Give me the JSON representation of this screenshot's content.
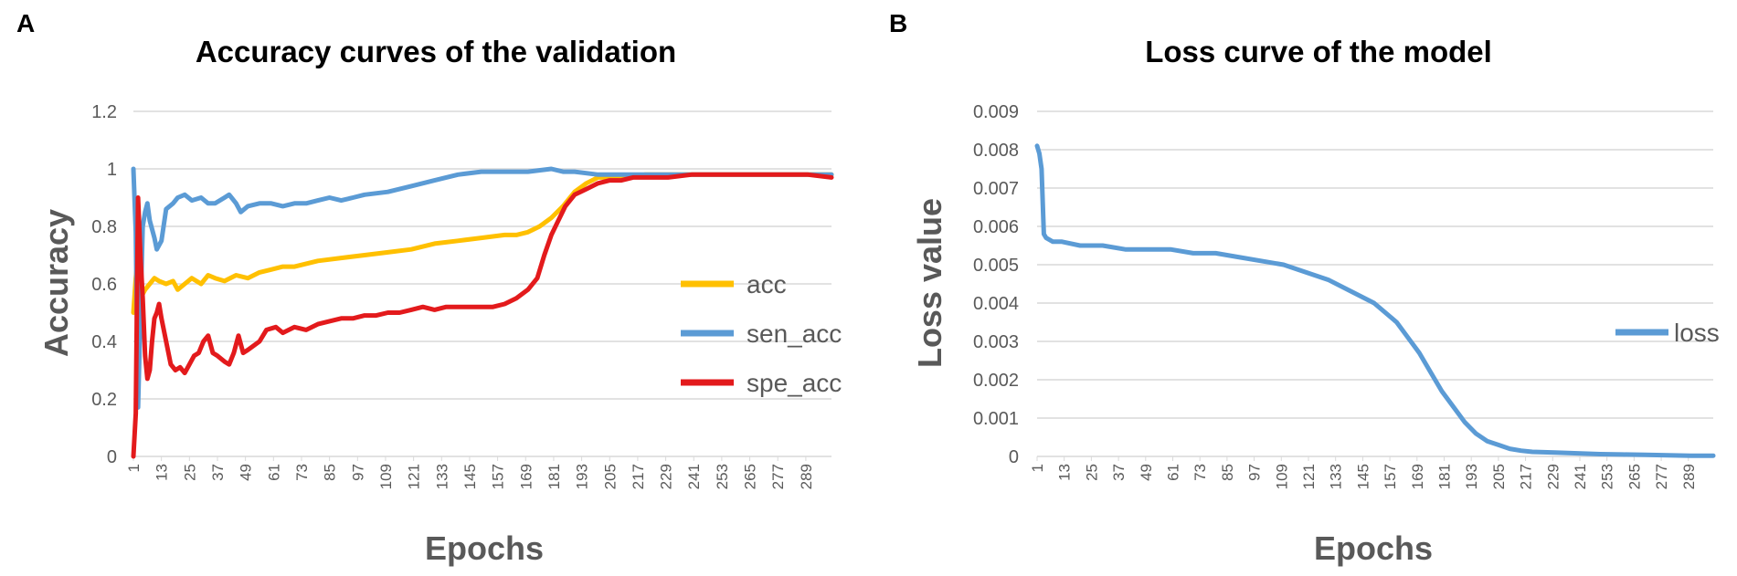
{
  "chart_data": [
    {
      "panel": "A",
      "type": "line",
      "title": "Accuracy curves of the validation",
      "xlabel": "Epochs",
      "ylabel": "Accuracy",
      "ylim": [
        0,
        1.2
      ],
      "yticks": [
        "0",
        "0.2",
        "0.4",
        "0.6",
        "0.8",
        "1",
        "1.2"
      ],
      "xlim": [
        1,
        300
      ],
      "xticks": [
        "1",
        "13",
        "25",
        "37",
        "49",
        "61",
        "73",
        "85",
        "97",
        "109",
        "121",
        "133",
        "145",
        "157",
        "169",
        "181",
        "193",
        "205",
        "217",
        "229",
        "241",
        "253",
        "265",
        "277",
        "289"
      ],
      "grid": true,
      "legend_position": "right",
      "series": [
        {
          "name": "acc",
          "color": "#FFC000",
          "points": [
            [
              1,
              0.5
            ],
            [
              2,
              0.62
            ],
            [
              3,
              0.7
            ],
            [
              4,
              0.55
            ],
            [
              6,
              0.58
            ],
            [
              8,
              0.6
            ],
            [
              10,
              0.62
            ],
            [
              12,
              0.61
            ],
            [
              15,
              0.6
            ],
            [
              18,
              0.61
            ],
            [
              20,
              0.58
            ],
            [
              23,
              0.6
            ],
            [
              26,
              0.62
            ],
            [
              30,
              0.6
            ],
            [
              33,
              0.63
            ],
            [
              36,
              0.62
            ],
            [
              40,
              0.61
            ],
            [
              45,
              0.63
            ],
            [
              50,
              0.62
            ],
            [
              55,
              0.64
            ],
            [
              60,
              0.65
            ],
            [
              65,
              0.66
            ],
            [
              70,
              0.66
            ],
            [
              80,
              0.68
            ],
            [
              90,
              0.69
            ],
            [
              100,
              0.7
            ],
            [
              110,
              0.71
            ],
            [
              120,
              0.72
            ],
            [
              130,
              0.74
            ],
            [
              140,
              0.75
            ],
            [
              150,
              0.76
            ],
            [
              160,
              0.77
            ],
            [
              165,
              0.77
            ],
            [
              170,
              0.78
            ],
            [
              175,
              0.8
            ],
            [
              180,
              0.83
            ],
            [
              185,
              0.87
            ],
            [
              190,
              0.92
            ],
            [
              195,
              0.95
            ],
            [
              200,
              0.97
            ],
            [
              205,
              0.97
            ],
            [
              210,
              0.97
            ],
            [
              220,
              0.98
            ],
            [
              230,
              0.98
            ],
            [
              240,
              0.98
            ],
            [
              250,
              0.98
            ],
            [
              260,
              0.98
            ],
            [
              270,
              0.98
            ],
            [
              280,
              0.98
            ],
            [
              290,
              0.98
            ],
            [
              300,
              0.98
            ]
          ]
        },
        {
          "name": "sen_acc",
          "color": "#5B9BD5",
          "points": [
            [
              1,
              1.0
            ],
            [
              2,
              0.78
            ],
            [
              3,
              0.17
            ],
            [
              4,
              0.5
            ],
            [
              5,
              0.8
            ],
            [
              6,
              0.85
            ],
            [
              7,
              0.88
            ],
            [
              8,
              0.82
            ],
            [
              10,
              0.76
            ],
            [
              11,
              0.72
            ],
            [
              13,
              0.75
            ],
            [
              15,
              0.86
            ],
            [
              18,
              0.88
            ],
            [
              20,
              0.9
            ],
            [
              23,
              0.91
            ],
            [
              26,
              0.89
            ],
            [
              30,
              0.9
            ],
            [
              33,
              0.88
            ],
            [
              36,
              0.88
            ],
            [
              40,
              0.9
            ],
            [
              42,
              0.91
            ],
            [
              45,
              0.88
            ],
            [
              47,
              0.85
            ],
            [
              50,
              0.87
            ],
            [
              55,
              0.88
            ],
            [
              60,
              0.88
            ],
            [
              65,
              0.87
            ],
            [
              70,
              0.88
            ],
            [
              75,
              0.88
            ],
            [
              80,
              0.89
            ],
            [
              85,
              0.9
            ],
            [
              90,
              0.89
            ],
            [
              95,
              0.9
            ],
            [
              100,
              0.91
            ],
            [
              110,
              0.92
            ],
            [
              120,
              0.94
            ],
            [
              130,
              0.96
            ],
            [
              140,
              0.98
            ],
            [
              150,
              0.99
            ],
            [
              160,
              0.99
            ],
            [
              170,
              0.99
            ],
            [
              180,
              1.0
            ],
            [
              185,
              0.99
            ],
            [
              190,
              0.99
            ],
            [
              200,
              0.98
            ],
            [
              210,
              0.98
            ],
            [
              220,
              0.98
            ],
            [
              240,
              0.98
            ],
            [
              260,
              0.98
            ],
            [
              280,
              0.98
            ],
            [
              300,
              0.98
            ]
          ]
        },
        {
          "name": "spe_acc",
          "color": "#E31A1C",
          "points": [
            [
              1,
              0.0
            ],
            [
              2,
              0.15
            ],
            [
              3,
              0.9
            ],
            [
              4,
              0.7
            ],
            [
              5,
              0.55
            ],
            [
              6,
              0.35
            ],
            [
              7,
              0.27
            ],
            [
              8,
              0.3
            ],
            [
              9,
              0.4
            ],
            [
              10,
              0.48
            ],
            [
              11,
              0.5
            ],
            [
              12,
              0.53
            ],
            [
              13,
              0.48
            ],
            [
              15,
              0.4
            ],
            [
              17,
              0.32
            ],
            [
              19,
              0.3
            ],
            [
              21,
              0.31
            ],
            [
              23,
              0.29
            ],
            [
              25,
              0.32
            ],
            [
              27,
              0.35
            ],
            [
              29,
              0.36
            ],
            [
              31,
              0.4
            ],
            [
              33,
              0.42
            ],
            [
              35,
              0.36
            ],
            [
              37,
              0.35
            ],
            [
              40,
              0.33
            ],
            [
              42,
              0.32
            ],
            [
              44,
              0.36
            ],
            [
              46,
              0.42
            ],
            [
              48,
              0.36
            ],
            [
              50,
              0.37
            ],
            [
              55,
              0.4
            ],
            [
              58,
              0.44
            ],
            [
              62,
              0.45
            ],
            [
              65,
              0.43
            ],
            [
              70,
              0.45
            ],
            [
              75,
              0.44
            ],
            [
              80,
              0.46
            ],
            [
              85,
              0.47
            ],
            [
              90,
              0.48
            ],
            [
              95,
              0.48
            ],
            [
              100,
              0.49
            ],
            [
              105,
              0.49
            ],
            [
              110,
              0.5
            ],
            [
              115,
              0.5
            ],
            [
              120,
              0.51
            ],
            [
              125,
              0.52
            ],
            [
              130,
              0.51
            ],
            [
              135,
              0.52
            ],
            [
              140,
              0.52
            ],
            [
              145,
              0.52
            ],
            [
              150,
              0.52
            ],
            [
              155,
              0.52
            ],
            [
              160,
              0.53
            ],
            [
              165,
              0.55
            ],
            [
              170,
              0.58
            ],
            [
              174,
              0.62
            ],
            [
              177,
              0.7
            ],
            [
              180,
              0.77
            ],
            [
              183,
              0.82
            ],
            [
              186,
              0.87
            ],
            [
              190,
              0.91
            ],
            [
              195,
              0.93
            ],
            [
              200,
              0.95
            ],
            [
              205,
              0.96
            ],
            [
              210,
              0.96
            ],
            [
              215,
              0.97
            ],
            [
              220,
              0.97
            ],
            [
              230,
              0.97
            ],
            [
              240,
              0.98
            ],
            [
              250,
              0.98
            ],
            [
              260,
              0.98
            ],
            [
              270,
              0.98
            ],
            [
              280,
              0.98
            ],
            [
              290,
              0.98
            ],
            [
              300,
              0.97
            ]
          ]
        }
      ]
    },
    {
      "panel": "B",
      "type": "line",
      "title": "Loss curve of the model",
      "xlabel": "Epochs",
      "ylabel": "Loss value",
      "ylim": [
        0,
        0.009
      ],
      "yticks": [
        "0",
        "0.001",
        "0.002",
        "0.003",
        "0.004",
        "0.005",
        "0.006",
        "0.007",
        "0.008",
        "0.009"
      ],
      "xlim": [
        1,
        300
      ],
      "xticks": [
        "1",
        "13",
        "25",
        "37",
        "49",
        "61",
        "73",
        "85",
        "97",
        "109",
        "121",
        "133",
        "145",
        "157",
        "169",
        "181",
        "193",
        "205",
        "217",
        "229",
        "241",
        "253",
        "265",
        "277",
        "289"
      ],
      "grid": true,
      "legend_position": "right",
      "series": [
        {
          "name": "loss",
          "color": "#5B9BD5",
          "points": [
            [
              1,
              0.0081
            ],
            [
              2,
              0.0079
            ],
            [
              3,
              0.0075
            ],
            [
              4,
              0.0058
            ],
            [
              5,
              0.0057
            ],
            [
              8,
              0.0056
            ],
            [
              12,
              0.0056
            ],
            [
              20,
              0.0055
            ],
            [
              30,
              0.0055
            ],
            [
              40,
              0.0054
            ],
            [
              50,
              0.0054
            ],
            [
              60,
              0.0054
            ],
            [
              70,
              0.0053
            ],
            [
              80,
              0.0053
            ],
            [
              90,
              0.0052
            ],
            [
              100,
              0.0051
            ],
            [
              110,
              0.005
            ],
            [
              120,
              0.0048
            ],
            [
              130,
              0.0046
            ],
            [
              140,
              0.0043
            ],
            [
              150,
              0.004
            ],
            [
              160,
              0.0035
            ],
            [
              165,
              0.0031
            ],
            [
              170,
              0.0027
            ],
            [
              175,
              0.0022
            ],
            [
              180,
              0.0017
            ],
            [
              185,
              0.0013
            ],
            [
              190,
              0.0009
            ],
            [
              195,
              0.0006
            ],
            [
              200,
              0.0004
            ],
            [
              205,
              0.0003
            ],
            [
              210,
              0.0002
            ],
            [
              215,
              0.00015
            ],
            [
              220,
              0.00012
            ],
            [
              230,
              0.0001
            ],
            [
              240,
              8e-05
            ],
            [
              250,
              6e-05
            ],
            [
              260,
              5e-05
            ],
            [
              270,
              4e-05
            ],
            [
              280,
              3e-05
            ],
            [
              290,
              2e-05
            ],
            [
              300,
              2e-05
            ]
          ]
        }
      ]
    }
  ]
}
